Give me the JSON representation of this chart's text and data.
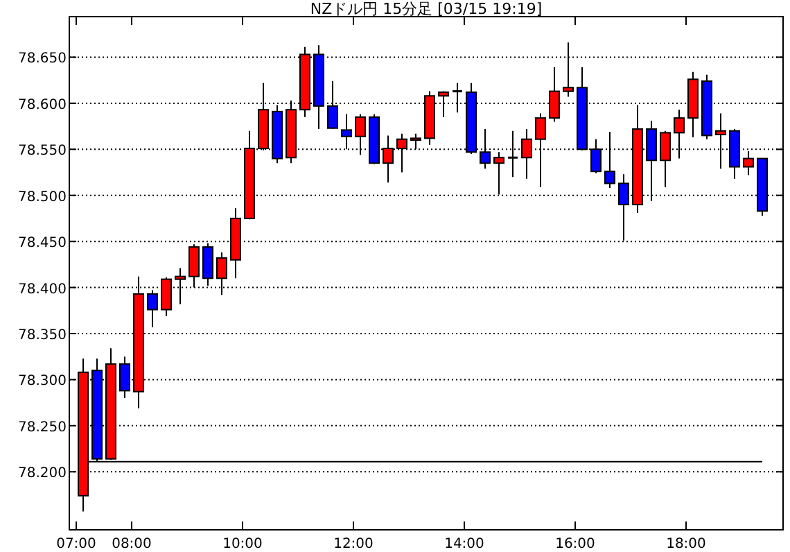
{
  "chart_data": {
    "type": "candlestick",
    "title": "NZドル円 15分足 [03/15 19:19]",
    "x": [
      7.125,
      7.375,
      7.625,
      7.875,
      8.125,
      8.375,
      8.625,
      8.875,
      9.125,
      9.375,
      9.625,
      9.875,
      10.125,
      10.375,
      10.625,
      10.875,
      11.125,
      11.375,
      11.625,
      11.875,
      12.125,
      12.375,
      12.625,
      12.875,
      13.125,
      13.375,
      13.625,
      13.875,
      14.125,
      14.375,
      14.625,
      14.875,
      15.125,
      15.375,
      15.625,
      15.875,
      16.125,
      16.375,
      16.625,
      16.875,
      17.125,
      17.375,
      17.625,
      17.875,
      18.125,
      18.375,
      18.625,
      18.875,
      19.125,
      19.375
    ],
    "ohlc": [
      [
        78.174,
        78.323,
        78.157,
        78.308
      ],
      [
        78.31,
        78.323,
        78.211,
        78.214
      ],
      [
        78.214,
        78.334,
        78.213,
        78.317
      ],
      [
        78.317,
        78.325,
        78.28,
        78.288
      ],
      [
        78.287,
        78.412,
        78.269,
        78.393
      ],
      [
        78.393,
        78.397,
        78.357,
        78.376
      ],
      [
        78.376,
        78.411,
        78.369,
        78.409
      ],
      [
        78.409,
        78.421,
        78.382,
        78.412
      ],
      [
        78.412,
        78.447,
        78.4,
        78.444
      ],
      [
        78.444,
        78.448,
        78.402,
        78.41
      ],
      [
        78.41,
        78.438,
        78.392,
        78.432
      ],
      [
        78.43,
        78.486,
        78.41,
        78.475
      ],
      [
        78.475,
        78.57,
        78.474,
        78.551
      ],
      [
        78.551,
        78.622,
        78.549,
        78.593
      ],
      [
        78.591,
        78.598,
        78.535,
        78.54
      ],
      [
        78.541,
        78.603,
        78.535,
        78.593
      ],
      [
        78.593,
        78.661,
        78.585,
        78.653
      ],
      [
        78.653,
        78.663,
        78.572,
        78.597
      ],
      [
        78.597,
        78.624,
        78.572,
        78.573
      ],
      [
        78.571,
        78.588,
        78.55,
        78.564
      ],
      [
        78.564,
        78.588,
        78.544,
        78.585
      ],
      [
        78.585,
        78.588,
        78.534,
        78.535
      ],
      [
        78.535,
        78.565,
        78.514,
        78.551
      ],
      [
        78.551,
        78.567,
        78.525,
        78.561
      ],
      [
        78.56,
        78.567,
        78.55,
        78.562
      ],
      [
        78.562,
        78.613,
        78.555,
        78.608
      ],
      [
        78.608,
        78.613,
        78.585,
        78.612
      ],
      [
        78.613,
        78.622,
        78.59,
        78.613
      ],
      [
        78.612,
        78.622,
        78.545,
        78.547
      ],
      [
        78.547,
        78.572,
        78.529,
        78.535
      ],
      [
        78.535,
        78.547,
        78.501,
        78.541
      ],
      [
        78.541,
        78.57,
        78.52,
        78.541
      ],
      [
        78.541,
        78.572,
        78.518,
        78.561
      ],
      [
        78.561,
        78.589,
        78.509,
        78.584
      ],
      [
        78.584,
        78.639,
        78.58,
        78.613
      ],
      [
        78.613,
        78.666,
        78.607,
        78.617
      ],
      [
        78.617,
        78.639,
        78.549,
        78.55
      ],
      [
        78.55,
        78.561,
        78.524,
        78.526
      ],
      [
        78.526,
        78.569,
        78.508,
        78.513
      ],
      [
        78.513,
        78.523,
        78.451,
        78.49
      ],
      [
        78.49,
        78.598,
        78.481,
        78.572
      ],
      [
        78.572,
        78.581,
        78.494,
        78.538
      ],
      [
        78.538,
        78.57,
        78.509,
        78.568
      ],
      [
        78.568,
        78.593,
        78.54,
        78.584
      ],
      [
        78.584,
        78.634,
        78.563,
        78.626
      ],
      [
        78.624,
        78.631,
        78.561,
        78.565
      ],
      [
        78.566,
        78.589,
        78.529,
        78.57
      ],
      [
        78.57,
        78.572,
        78.518,
        78.531
      ],
      [
        78.531,
        78.548,
        78.522,
        78.54
      ],
      [
        78.54,
        78.54,
        78.478,
        78.483
      ]
    ],
    "colors": [
      "#ff0000",
      "#0000ff",
      "#ff0000",
      "#0000ff",
      "#ff0000",
      "#0000ff",
      "#ff0000",
      "#ff0000",
      "#ff0000",
      "#0000ff",
      "#ff0000",
      "#ff0000",
      "#ff0000",
      "#ff0000",
      "#0000ff",
      "#ff0000",
      "#ff0000",
      "#0000ff",
      "#0000ff",
      "#0000ff",
      "#ff0000",
      "#0000ff",
      "#ff0000",
      "#ff0000",
      "#ff0000",
      "#ff0000",
      "#ff0000",
      "#000000",
      "#0000ff",
      "#0000ff",
      "#ff0000",
      "#000000",
      "#ff0000",
      "#ff0000",
      "#ff0000",
      "#ff0000",
      "#0000ff",
      "#0000ff",
      "#0000ff",
      "#0000ff",
      "#ff0000",
      "#0000ff",
      "#ff0000",
      "#ff0000",
      "#ff0000",
      "#0000ff",
      "#ff0000",
      "#0000ff",
      "#ff0000",
      "#0000ff"
    ],
    "xlim": [
      6.875,
      19.75
    ],
    "xticks": [
      {
        "value": 7,
        "label": "07:00"
      },
      {
        "value": 8,
        "label": "08:00"
      },
      {
        "value": 10,
        "label": "10:00"
      },
      {
        "value": 12,
        "label": "12:00"
      },
      {
        "value": 14,
        "label": "14:00"
      },
      {
        "value": 16,
        "label": "16:00"
      },
      {
        "value": 18,
        "label": "18:00"
      }
    ],
    "ylim": [
      78.137,
      78.694
    ],
    "yticks": [
      {
        "value": 78.2,
        "label": "78.200"
      },
      {
        "value": 78.25,
        "label": "78.250"
      },
      {
        "value": 78.3,
        "label": "78.300"
      },
      {
        "value": 78.35,
        "label": "78.350"
      },
      {
        "value": 78.4,
        "label": "78.400"
      },
      {
        "value": 78.45,
        "label": "78.450"
      },
      {
        "value": 78.5,
        "label": "78.500"
      },
      {
        "value": 78.55,
        "label": "78.550"
      },
      {
        "value": 78.6,
        "label": "78.600"
      },
      {
        "value": 78.65,
        "label": "78.650"
      }
    ],
    "grid": "y",
    "ref_lines": [
      {
        "axis": "y",
        "value": 78.211,
        "color": "#000000"
      }
    ]
  }
}
